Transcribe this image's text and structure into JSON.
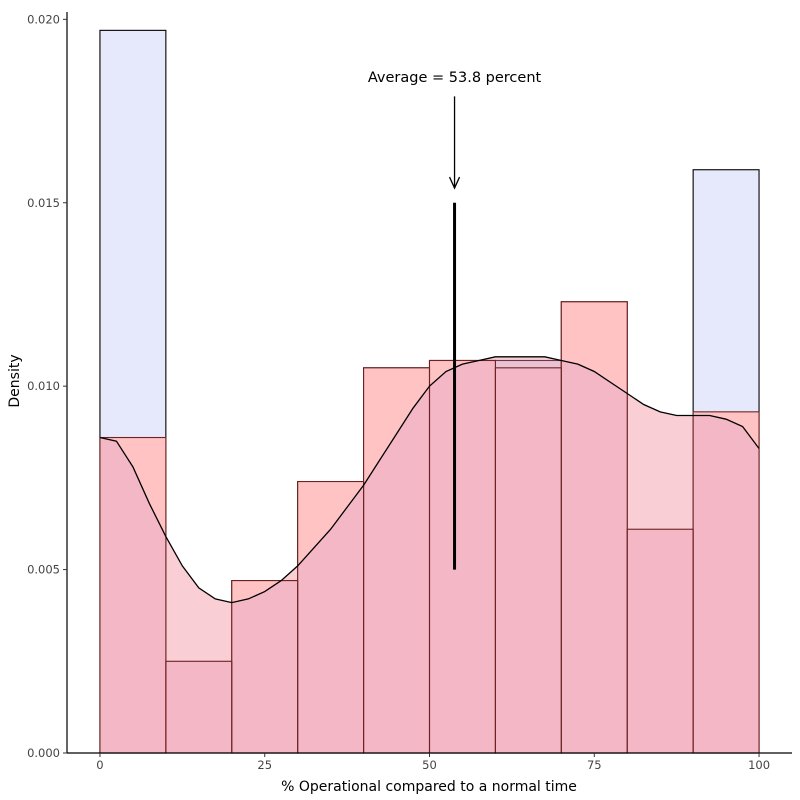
{
  "chart_data": {
    "type": "histogram-density",
    "xlabel": "% Operational compared to a normal time",
    "ylabel": "Density",
    "xlim": [
      -5,
      105
    ],
    "ylim": [
      0,
      0.0202
    ],
    "x_ticks": [
      0,
      25,
      50,
      75,
      100
    ],
    "y_ticks": [
      0.0,
      0.005,
      0.01,
      0.015,
      0.02
    ],
    "x_tick_labels": [
      "0",
      "25",
      "50",
      "75",
      "100"
    ],
    "y_tick_labels": [
      "0.000",
      "0.005",
      "0.010",
      "0.015",
      "0.020"
    ],
    "bins": [
      0,
      10,
      20,
      30,
      40,
      50,
      60,
      70,
      80,
      90,
      100
    ],
    "series": [
      {
        "name": "histogram-blue",
        "fill": "#e6e8fb",
        "stroke": "#000000",
        "values": [
          0.0197,
          0.0,
          0.0047,
          0.0074,
          0.0105,
          0.0107,
          0.0107,
          0.0123,
          0.0,
          0.0159
        ]
      },
      {
        "name": "histogram-red",
        "fill": "#ffc3c3",
        "stroke": "#6e2222",
        "values": [
          0.0086,
          0.0025,
          0.0047,
          0.0074,
          0.0105,
          0.0107,
          0.0105,
          0.0123,
          0.0061,
          0.0093
        ]
      }
    ],
    "density_curve": {
      "x": [
        0,
        2.5,
        5,
        7.5,
        10,
        12.5,
        15,
        17.5,
        20,
        22.5,
        25,
        27.5,
        30,
        32.5,
        35,
        37.5,
        40,
        42.5,
        45,
        47.5,
        50,
        52.5,
        55,
        57.5,
        60,
        62.5,
        65,
        67.5,
        70,
        72.5,
        75,
        77.5,
        80,
        82.5,
        85,
        87.5,
        90,
        92.5,
        95,
        97.5,
        100
      ],
      "y": [
        0.0086,
        0.0085,
        0.0078,
        0.0068,
        0.0059,
        0.0051,
        0.0045,
        0.0042,
        0.0041,
        0.0042,
        0.0044,
        0.0047,
        0.0051,
        0.0056,
        0.0061,
        0.0067,
        0.0073,
        0.008,
        0.0087,
        0.0094,
        0.01,
        0.0104,
        0.0106,
        0.0107,
        0.0108,
        0.0108,
        0.0108,
        0.0108,
        0.0107,
        0.0106,
        0.0104,
        0.0101,
        0.0098,
        0.0095,
        0.0093,
        0.0092,
        0.0092,
        0.0092,
        0.0091,
        0.0089,
        0.0083
      ],
      "fill": "#f08c9a",
      "fill_opacity": 0.42,
      "stroke": "#000000"
    },
    "overlap_color": "#f3b7c6",
    "mean_line": {
      "x": 53.8,
      "y_bottom": 0.005,
      "y_top": 0.015
    },
    "arrow": {
      "x": 53.8,
      "y_from": 0.0179,
      "y_to": 0.0154
    },
    "annotation": {
      "text": "Average = 53.8 percent",
      "x": 53.8,
      "y": 0.0184
    }
  }
}
